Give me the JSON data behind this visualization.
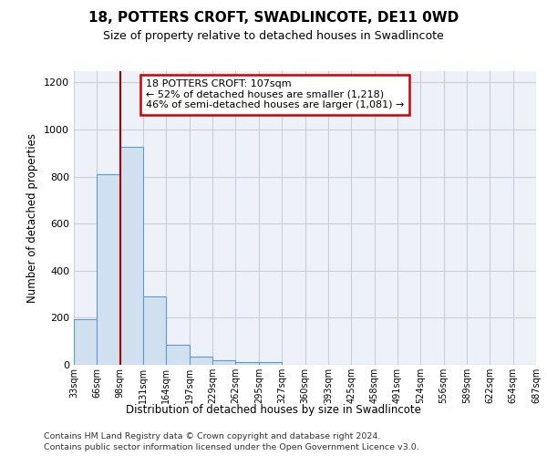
{
  "title": "18, POTTERS CROFT, SWADLINCOTE, DE11 0WD",
  "subtitle": "Size of property relative to detached houses in Swadlincote",
  "xlabel": "Distribution of detached houses by size in Swadlincote",
  "ylabel": "Number of detached properties",
  "bar_color": "#d0e0ef",
  "bar_edge_color": "#5b9bd5",
  "annotation_box_text": "18 POTTERS CROFT: 107sqm\n← 52% of detached houses are smaller (1,218)\n46% of semi-detached houses are larger (1,081) →",
  "property_line_x": 99,
  "footer_line1": "Contains HM Land Registry data © Crown copyright and database right 2024.",
  "footer_line2": "Contains public sector information licensed under the Open Government Licence v3.0.",
  "bin_edges": [
    33,
    66,
    99,
    132,
    165,
    198,
    231,
    264,
    297,
    330,
    363,
    396,
    429,
    462,
    495,
    528,
    561,
    594,
    627,
    660,
    693
  ],
  "bin_labels": [
    "33sqm",
    "66sqm",
    "98sqm",
    "131sqm",
    "164sqm",
    "197sqm",
    "229sqm",
    "262sqm",
    "295sqm",
    "327sqm",
    "360sqm",
    "393sqm",
    "425sqm",
    "458sqm",
    "491sqm",
    "524sqm",
    "556sqm",
    "589sqm",
    "622sqm",
    "654sqm",
    "687sqm"
  ],
  "bar_heights": [
    195,
    810,
    925,
    290,
    85,
    35,
    18,
    13,
    10,
    0,
    0,
    0,
    0,
    0,
    0,
    0,
    0,
    0,
    0,
    0
  ],
  "ylim": [
    0,
    1250
  ],
  "yticks": [
    0,
    200,
    400,
    600,
    800,
    1000,
    1200
  ],
  "background_color": "#eef2f8",
  "grid_color": "#c8cfd8",
  "line_color": "#aa0000"
}
